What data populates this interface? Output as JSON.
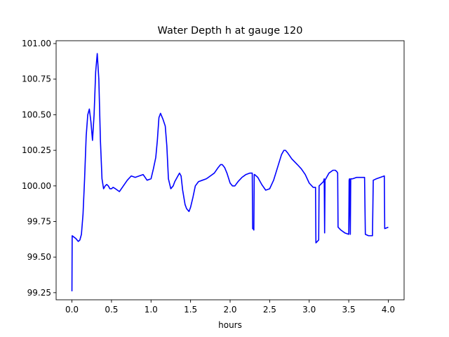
{
  "chart_data": {
    "type": "line",
    "title": "Water Depth h at gauge 120",
    "xlabel": "hours",
    "ylabel": "",
    "xlim": [
      -0.2,
      4.2
    ],
    "ylim": [
      99.2,
      101.02
    ],
    "xticks": [
      0.0,
      0.5,
      1.0,
      1.5,
      2.0,
      2.5,
      3.0,
      3.5,
      4.0
    ],
    "xtick_labels": [
      "0.0",
      "0.5",
      "1.0",
      "1.5",
      "2.0",
      "2.5",
      "3.0",
      "3.5",
      "4.0"
    ],
    "yticks": [
      99.25,
      99.5,
      99.75,
      100.0,
      100.25,
      100.5,
      100.75,
      101.0
    ],
    "ytick_labels": [
      "99.25",
      "99.50",
      "99.75",
      "100.00",
      "100.25",
      "100.50",
      "100.75",
      "101.00"
    ],
    "grid": false,
    "legend": "none",
    "series": [
      {
        "color": "#0000ff",
        "x": [
          0.0,
          0.003,
          0.05,
          0.08,
          0.1,
          0.12,
          0.14,
          0.16,
          0.18,
          0.2,
          0.22,
          0.24,
          0.26,
          0.28,
          0.3,
          0.32,
          0.34,
          0.36,
          0.38,
          0.4,
          0.42,
          0.44,
          0.46,
          0.48,
          0.5,
          0.52,
          0.55,
          0.6,
          0.65,
          0.7,
          0.75,
          0.8,
          0.85,
          0.9,
          0.95,
          1.0,
          1.03,
          1.06,
          1.08,
          1.1,
          1.12,
          1.15,
          1.18,
          1.2,
          1.22,
          1.25,
          1.28,
          1.3,
          1.33,
          1.36,
          1.38,
          1.4,
          1.43,
          1.45,
          1.48,
          1.5,
          1.53,
          1.56,
          1.6,
          1.65,
          1.7,
          1.75,
          1.8,
          1.85,
          1.88,
          1.9,
          1.93,
          1.96,
          2.0,
          2.03,
          2.06,
          2.1,
          2.15,
          2.2,
          2.25,
          2.28,
          2.285,
          2.29,
          2.3,
          2.305,
          2.31,
          2.35,
          2.4,
          2.45,
          2.5,
          2.55,
          2.6,
          2.65,
          2.68,
          2.7,
          2.73,
          2.78,
          2.85,
          2.9,
          2.95,
          3.0,
          3.05,
          3.08,
          3.085,
          3.12,
          3.125,
          3.18,
          3.19,
          3.195,
          3.2,
          3.25,
          3.3,
          3.33,
          3.35,
          3.36,
          3.365,
          3.4,
          3.45,
          3.5,
          3.505,
          3.51,
          3.52,
          3.525,
          3.55,
          3.6,
          3.65,
          3.7,
          3.71,
          3.75,
          3.8,
          3.81,
          3.85,
          3.9,
          3.95,
          3.955,
          4.0
        ],
        "values": [
          99.26,
          99.65,
          99.63,
          99.61,
          99.62,
          99.66,
          99.8,
          100.05,
          100.35,
          100.5,
          100.54,
          100.45,
          100.32,
          100.5,
          100.8,
          100.93,
          100.75,
          100.32,
          100.05,
          99.98,
          100.0,
          100.01,
          100.0,
          99.98,
          99.98,
          99.99,
          99.98,
          99.96,
          100.0,
          100.04,
          100.07,
          100.06,
          100.07,
          100.08,
          100.04,
          100.05,
          100.12,
          100.2,
          100.32,
          100.48,
          100.51,
          100.47,
          100.42,
          100.28,
          100.05,
          99.98,
          100.0,
          100.03,
          100.06,
          100.09,
          100.07,
          99.97,
          99.87,
          99.84,
          99.82,
          99.85,
          99.92,
          100.0,
          100.03,
          100.04,
          100.05,
          100.07,
          100.09,
          100.13,
          100.15,
          100.15,
          100.13,
          100.09,
          100.02,
          100.0,
          100.0,
          100.03,
          100.06,
          100.08,
          100.09,
          100.09,
          99.7,
          99.7,
          99.69,
          100.08,
          100.08,
          100.06,
          100.01,
          99.97,
          99.98,
          100.04,
          100.13,
          100.22,
          100.25,
          100.25,
          100.23,
          100.19,
          100.15,
          100.12,
          100.08,
          100.02,
          99.99,
          99.99,
          99.6,
          99.62,
          100.0,
          100.03,
          100.05,
          99.67,
          100.04,
          100.09,
          100.11,
          100.11,
          100.1,
          100.09,
          99.71,
          99.69,
          99.67,
          99.66,
          100.04,
          100.05,
          99.66,
          100.05,
          100.05,
          100.06,
          100.06,
          100.06,
          99.66,
          99.65,
          99.65,
          100.04,
          100.05,
          100.06,
          100.07,
          99.7,
          99.71
        ]
      }
    ]
  }
}
